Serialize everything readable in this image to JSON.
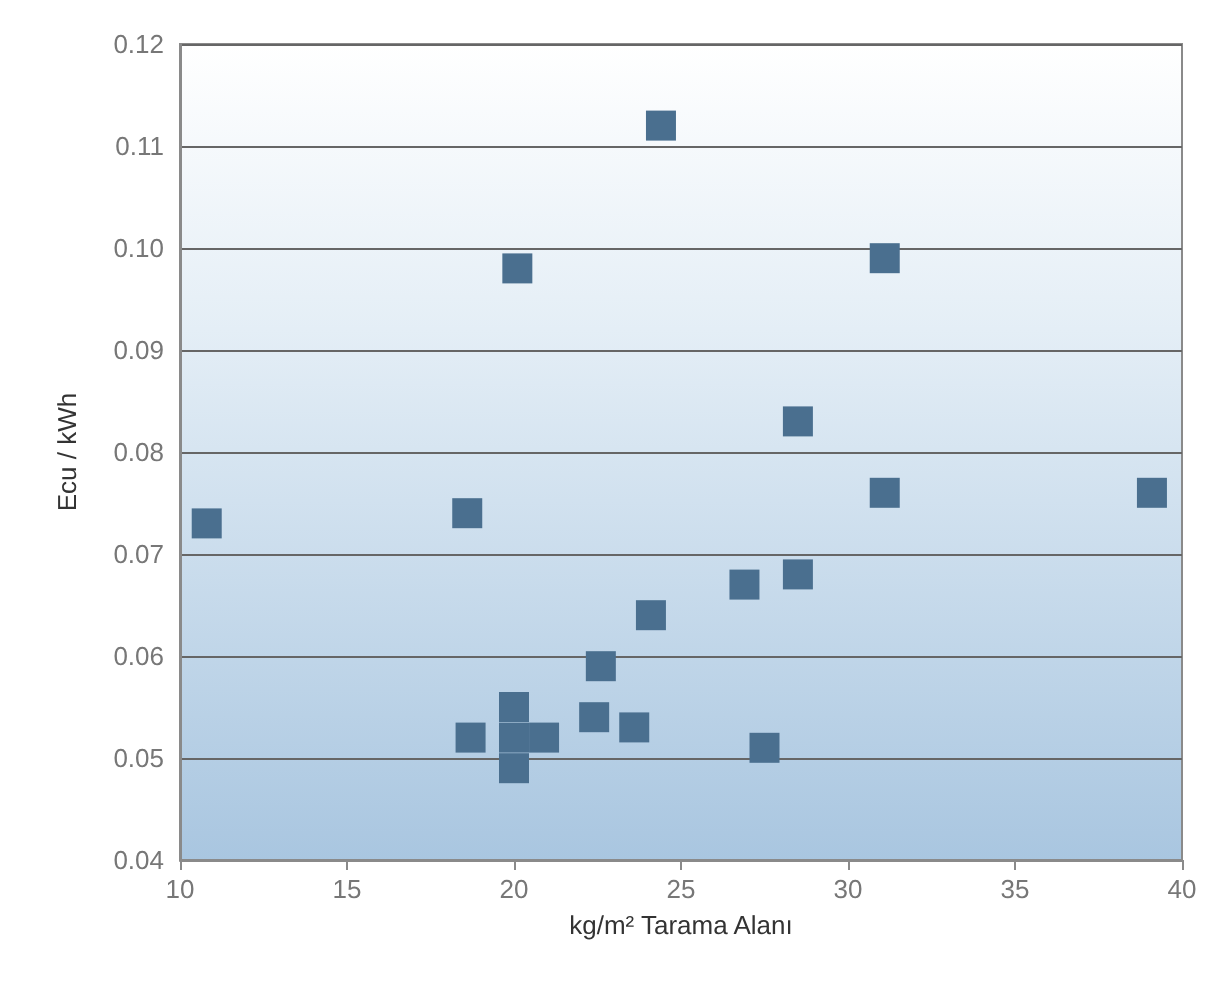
{
  "chart_data": {
    "type": "scatter",
    "xlabel": "kg/m² Tarama Alanı",
    "ylabel": "Ecu / kWh",
    "x": [
      10.8,
      18.6,
      20.1,
      24.4,
      31.1,
      28.5,
      31.1,
      39.1,
      26.9,
      28.5,
      24.1,
      22.6,
      22.4,
      23.6,
      27.5,
      18.7,
      20.0,
      20.0,
      20.0,
      20.9
    ],
    "values": [
      0.073,
      0.074,
      0.098,
      0.112,
      0.099,
      0.083,
      0.076,
      0.076,
      0.067,
      0.068,
      0.064,
      0.059,
      0.054,
      0.053,
      0.051,
      0.052,
      0.055,
      0.052,
      0.049,
      0.052
    ],
    "color": "#4a6f8f",
    "marker": "square",
    "grid": "y",
    "xlim": [
      10,
      40
    ],
    "xticks": [
      10,
      15,
      20,
      25,
      30,
      35,
      40
    ],
    "ylim": [
      0.04,
      0.12
    ],
    "yticks": [
      0.04,
      0.05,
      0.06,
      0.07,
      0.08,
      0.09,
      {
        "value": 0.1,
        "label": "0.10"
      },
      0.11,
      0.12
    ]
  }
}
